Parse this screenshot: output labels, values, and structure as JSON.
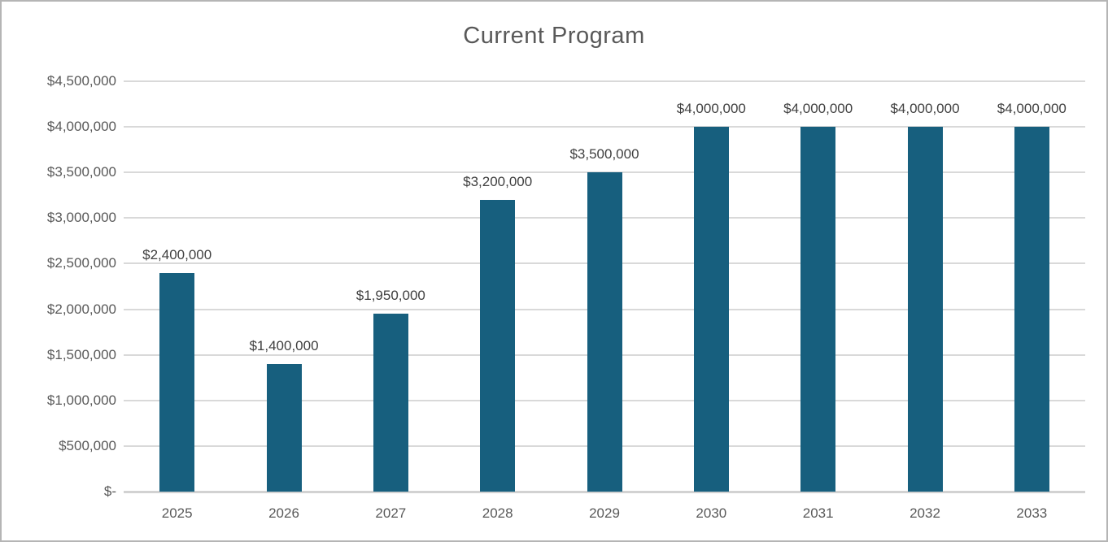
{
  "chart": {
    "title": "Current Program",
    "colors": {
      "bar_fill": "#175f7e",
      "gridline": "#d9d9d9",
      "axis_line": "#d2d2d2",
      "data_label_text": "#404040",
      "tick_label_text": "#595959",
      "title_text": "#595959",
      "frame_border": "#b5b5b5",
      "background": "#ffffff"
    }
  },
  "chart_data": {
    "type": "bar",
    "title": "Current Program",
    "xlabel": "",
    "ylabel": "",
    "grid": true,
    "legend": false,
    "ylim": [
      0,
      4500000
    ],
    "categories": [
      "2025",
      "2026",
      "2027",
      "2028",
      "2029",
      "2030",
      "2031",
      "2032",
      "2033"
    ],
    "values": [
      2400000,
      1400000,
      1950000,
      3200000,
      3500000,
      4000000,
      4000000,
      4000000,
      4000000
    ],
    "data_labels": [
      "$2,400,000",
      "$1,400,000",
      "$1,950,000",
      "$3,200,000",
      "$3,500,000",
      "$4,000,000",
      "$4,000,000",
      "$4,000,000",
      "$4,000,000"
    ],
    "y_ticks": [
      {
        "value": 0,
        "label": "$-"
      },
      {
        "value": 500000,
        "label": "$500,000"
      },
      {
        "value": 1000000,
        "label": "$1,000,000"
      },
      {
        "value": 1500000,
        "label": "$1,500,000"
      },
      {
        "value": 2000000,
        "label": "$2,000,000"
      },
      {
        "value": 2500000,
        "label": "$2,500,000"
      },
      {
        "value": 3000000,
        "label": "$3,000,000"
      },
      {
        "value": 3500000,
        "label": "$3,500,000"
      },
      {
        "value": 4000000,
        "label": "$4,000,000"
      },
      {
        "value": 4500000,
        "label": "$4,500,000"
      }
    ]
  }
}
